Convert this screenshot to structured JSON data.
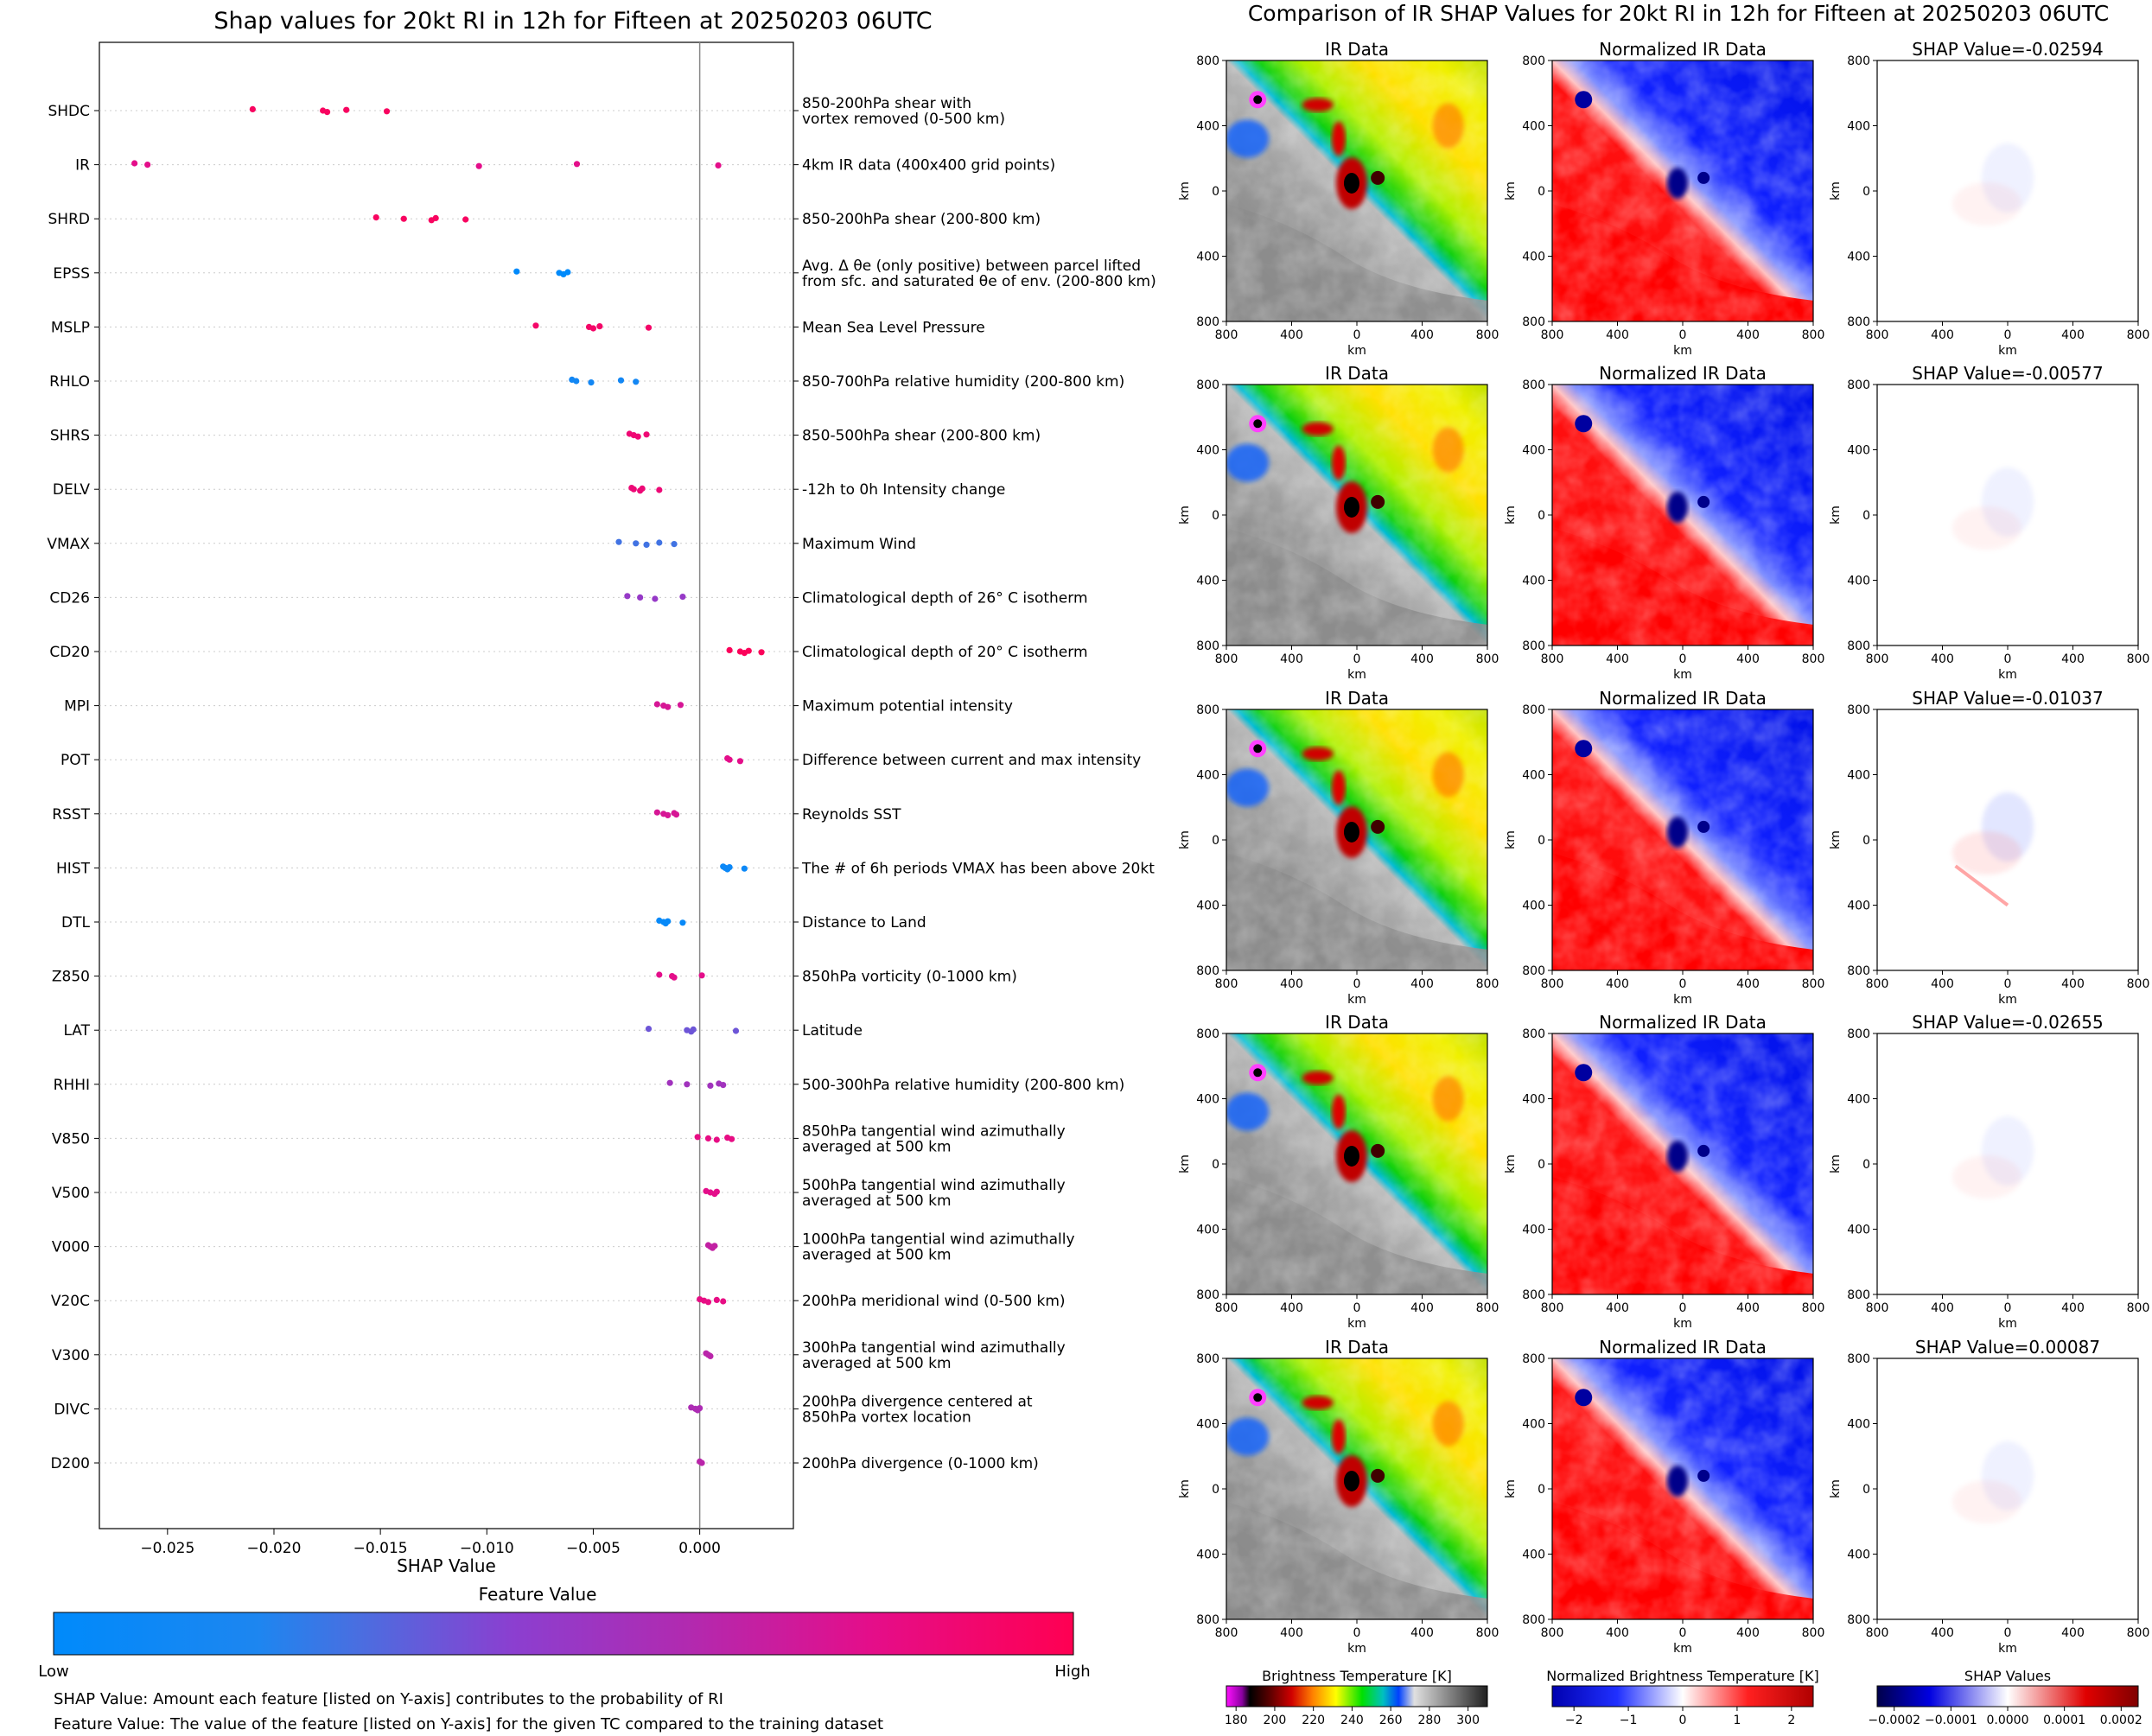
{
  "left_panel": {
    "title": "Shap values for 20kt RI in 12h for Fifteen at 20250203 06UTC",
    "colorbar_title": "Feature Value",
    "colorbar_low": "Low",
    "colorbar_high": "High",
    "note_shap": "SHAP Value: Amount each feature [listed on Y-axis] contributes to the probability of RI",
    "note_feature": "Feature Value: The value of the feature [listed on Y-axis] for the given TC compared to the training dataset"
  },
  "right_panel": {
    "title": "Comparison of IR SHAP Values for 20kt RI in 12h for Fifteen at 20250203 06UTC",
    "col_titles": [
      "IR Data",
      "Normalized IR Data"
    ],
    "shap_title_prefix": "SHAP Value=",
    "shap_values": [
      "-0.02594",
      "-0.00577",
      "-0.01037",
      "-0.02655",
      "0.00087"
    ],
    "axis_label": "km",
    "ticks": [
      "800",
      "400",
      "0",
      "400",
      "800"
    ],
    "colorbars": [
      {
        "label": "Brightness Temperature [K]",
        "ticks": [
          "180",
          "200",
          "220",
          "240",
          "260",
          "280",
          "300"
        ],
        "range": [
          175,
          310
        ]
      },
      {
        "label": "Normalized Brightness Temperature [K]",
        "ticks": [
          "−2",
          "−1",
          "0",
          "1",
          "2"
        ],
        "range": [
          -2.4,
          2.4
        ]
      },
      {
        "label": "SHAP Values",
        "ticks": [
          "−0.0002",
          "−0.0001",
          "0.0000",
          "0.0001",
          "0.0002"
        ],
        "range": [
          -0.00023,
          0.00023
        ]
      }
    ]
  },
  "colors": {
    "low": "#008afb",
    "mid": "#8b3fd0",
    "high": "#ff0052"
  },
  "chart_data": {
    "type": "scatter",
    "subtype": "shap-beeswarm",
    "title": "Shap values for 20kt RI in 12h for Fifteen at 20250203 06UTC",
    "xlabel": "SHAP Value",
    "xlim": [
      -0.0282,
      0.0044
    ],
    "xticks": [
      -0.025,
      -0.02,
      -0.015,
      -0.01,
      -0.005,
      0.0
    ],
    "xtick_labels": [
      "−0.025",
      "−0.020",
      "−0.015",
      "−0.010",
      "−0.005",
      "0.000"
    ],
    "features": [
      {
        "name": "SHDC",
        "desc": [
          "850-200hPa shear with",
          "vortex removed (0-500 km)"
        ],
        "shap": [
          -0.021,
          -0.0177,
          -0.0175,
          -0.0166,
          -0.0147
        ],
        "fv": 0.95
      },
      {
        "name": "IR",
        "desc": [
          "4km IR data (400x400 grid points)"
        ],
        "shap": [
          -0.02655,
          -0.02594,
          -0.01037,
          -0.00577,
          0.00087
        ],
        "fv": 0.8
      },
      {
        "name": "SHRD",
        "desc": [
          "850-200hPa shear (200-800 km)"
        ],
        "shap": [
          -0.0152,
          -0.0139,
          -0.0126,
          -0.0124,
          -0.011
        ],
        "fv": 0.95
      },
      {
        "name": "EPSS",
        "desc": [
          "Avg. Δ θe (only positive) between parcel lifted",
          "from sfc. and saturated θe of env. (200-800 km)"
        ],
        "shap": [
          -0.0086,
          -0.0066,
          -0.0064,
          -0.0062
        ],
        "fv": 0.0
      },
      {
        "name": "MSLP",
        "desc": [
          "Mean Sea Level Pressure"
        ],
        "shap": [
          -0.0077,
          -0.0052,
          -0.005,
          -0.0047,
          -0.0024
        ],
        "fv": 0.92
      },
      {
        "name": "RHLO",
        "desc": [
          "850-700hPa relative humidity (200-800 km)"
        ],
        "shap": [
          -0.006,
          -0.0058,
          -0.0051,
          -0.0037,
          -0.003
        ],
        "fv": 0.13
      },
      {
        "name": "SHRS",
        "desc": [
          "850-500hPa shear (200-800 km)"
        ],
        "shap": [
          -0.0033,
          -0.0031,
          -0.0029,
          -0.0025
        ],
        "fv": 0.88
      },
      {
        "name": "DELV",
        "desc": [
          "-12h to 0h Intensity change"
        ],
        "shap": [
          -0.0032,
          -0.0031,
          -0.0028,
          -0.0027,
          -0.0019
        ],
        "fv": 0.87
      },
      {
        "name": "VMAX",
        "desc": [
          "Maximum Wind"
        ],
        "shap": [
          -0.0038,
          -0.003,
          -0.0025,
          -0.0019,
          -0.0012
        ],
        "fv": 0.28
      },
      {
        "name": "CD26",
        "desc": [
          "Climatological depth of 26° C isotherm"
        ],
        "shap": [
          -0.0034,
          -0.0028,
          -0.0021,
          -0.0008
        ],
        "fv": 0.5
      },
      {
        "name": "CD20",
        "desc": [
          "Climatological depth of 20° C isotherm"
        ],
        "shap": [
          0.0014,
          0.0019,
          0.0021,
          0.0023,
          0.0029
        ],
        "fv": 0.97
      },
      {
        "name": "MPI",
        "desc": [
          "Maximum potential intensity"
        ],
        "shap": [
          -0.002,
          -0.0017,
          -0.0015,
          -0.0009
        ],
        "fv": 0.75
      },
      {
        "name": "POT",
        "desc": [
          "Difference between current and max intensity"
        ],
        "shap": [
          0.0013,
          0.0014,
          0.0019
        ],
        "fv": 0.8
      },
      {
        "name": "RSST",
        "desc": [
          "Reynolds SST"
        ],
        "shap": [
          -0.002,
          -0.0017,
          -0.0015,
          -0.0012,
          -0.0011
        ],
        "fv": 0.75
      },
      {
        "name": "HIST",
        "desc": [
          "The # of 6h periods VMAX has been above 20kt"
        ],
        "shap": [
          0.0011,
          0.0012,
          0.0013,
          0.0014,
          0.0021
        ],
        "fv": 0.08
      },
      {
        "name": "DTL",
        "desc": [
          "Distance to Land"
        ],
        "shap": [
          -0.0019,
          -0.0017,
          -0.0016,
          -0.0015,
          -0.0008
        ],
        "fv": 0.05
      },
      {
        "name": "Z850",
        "desc": [
          "850hPa vorticity (0-1000 km)"
        ],
        "shap": [
          -0.0019,
          -0.0013,
          -0.0012,
          0.0001
        ],
        "fv": 0.8
      },
      {
        "name": "LAT",
        "desc": [
          "Latitude"
        ],
        "shap": [
          -0.0024,
          -0.0006,
          -0.0004,
          -0.0003,
          0.0017
        ],
        "fv": 0.38
      },
      {
        "name": "RHHI",
        "desc": [
          "500-300hPa relative humidity (200-800 km)"
        ],
        "shap": [
          -0.0014,
          -0.0006,
          0.0005,
          0.0009,
          0.0011
        ],
        "fv": 0.55
      },
      {
        "name": "V850",
        "desc": [
          "850hPa tangential wind azimuthally",
          "averaged at 500 km"
        ],
        "shap": [
          -0.0001,
          0.0004,
          0.0008,
          0.0013,
          0.0015
        ],
        "fv": 0.82
      },
      {
        "name": "V500",
        "desc": [
          "500hPa tangential wind azimuthally",
          "averaged at 500 km"
        ],
        "shap": [
          0.0003,
          0.0005,
          0.0007,
          0.0008
        ],
        "fv": 0.8
      },
      {
        "name": "V000",
        "desc": [
          "1000hPa tangential wind azimuthally",
          "averaged at 500 km"
        ],
        "shap": [
          0.0004,
          0.0005,
          0.0006,
          0.0007
        ],
        "fv": 0.68
      },
      {
        "name": "V20C",
        "desc": [
          "200hPa meridional wind (0-500 km)"
        ],
        "shap": [
          0.0,
          0.0002,
          0.0004,
          0.0008,
          0.0011
        ],
        "fv": 0.82
      },
      {
        "name": "V300",
        "desc": [
          "300hPa tangential wind azimuthally",
          "averaged at 500 km"
        ],
        "shap": [
          0.0003,
          0.0004,
          0.0005
        ],
        "fv": 0.65
      },
      {
        "name": "DIVC",
        "desc": [
          "200hPa divergence centered at",
          "850hPa vortex location"
        ],
        "shap": [
          -0.0004,
          -0.0002,
          -0.0001,
          0.0
        ],
        "fv": 0.6
      },
      {
        "name": "D200",
        "desc": [
          "200hPa divergence (0-1000 km)"
        ],
        "shap": [
          0.0,
          0.0001
        ],
        "fv": 0.65
      }
    ]
  }
}
